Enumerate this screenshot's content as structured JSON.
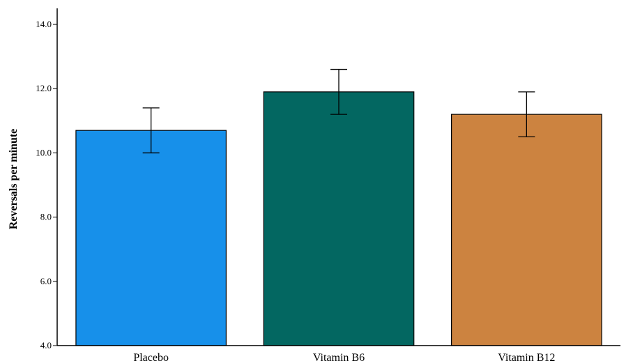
{
  "chart_data": {
    "type": "bar",
    "title": "",
    "xlabel": "",
    "ylabel": "Reversals per minute",
    "ylim": [
      4.0,
      14.5
    ],
    "yticks": [
      "4.0",
      "6.0",
      "8.0",
      "10.0",
      "12.0",
      "14.0"
    ],
    "grid": false,
    "categories": [
      "Placebo",
      "Vitamin B6",
      "Vitamin B12"
    ],
    "values": [
      10.7,
      11.9,
      11.2
    ],
    "error_bars": [
      {
        "low": 10.0,
        "high": 11.4
      },
      {
        "low": 11.2,
        "high": 12.6
      },
      {
        "low": 10.5,
        "high": 11.9
      }
    ],
    "colors": [
      "#1790EA",
      "#036761",
      "#CC8340"
    ]
  }
}
